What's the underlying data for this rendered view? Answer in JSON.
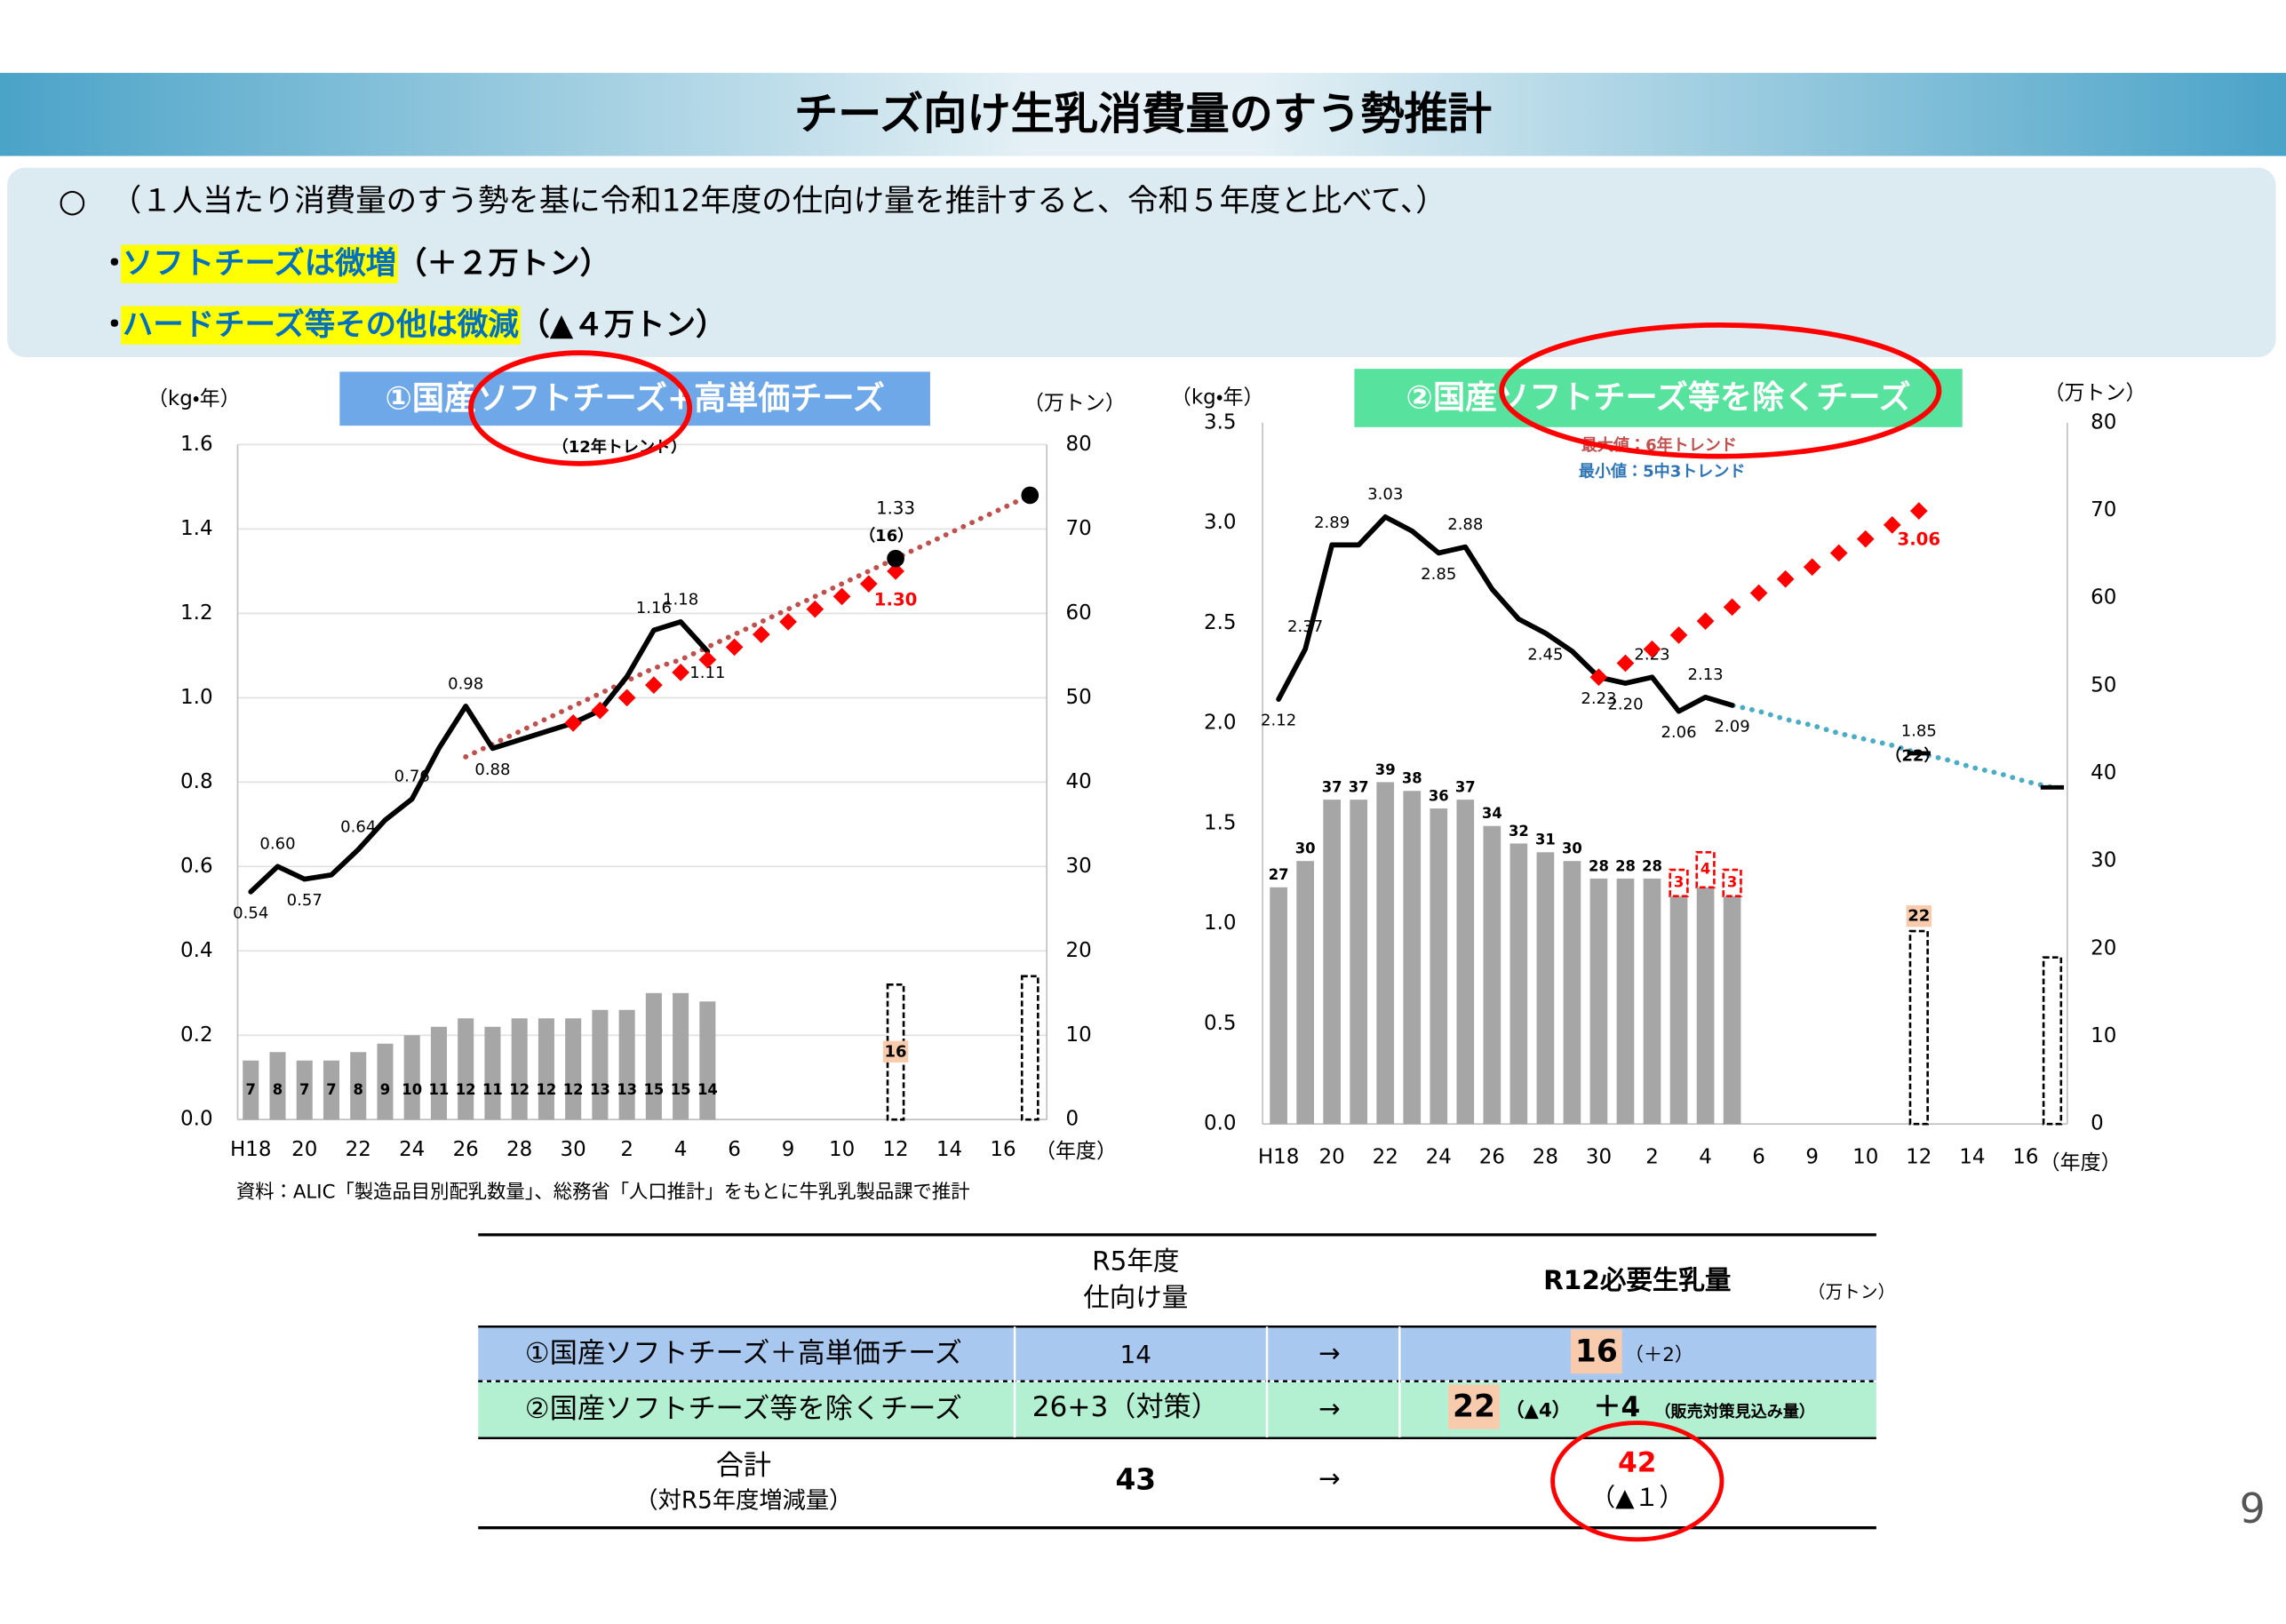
{
  "header": {
    "title": "チーズ向け生乳消費量のすう勢推計"
  },
  "intro": {
    "marker": "○",
    "text": "（１人当たり消費量のすう勢を基に令和12年度の仕向け量を推計すると、令和５年度と比べて、）"
  },
  "bullets": [
    {
      "marker": "・",
      "emphasis": "ソフトチーズは微増",
      "detail": "（＋２万トン）"
    },
    {
      "marker": "・",
      "emphasis": "ハードチーズ等その他は微減",
      "detail": "（▲４万トン）"
    }
  ],
  "chart_data": [
    {
      "type": "bar-line",
      "title": "①国産ソフトチーズ+高単価チーズ",
      "ylabel": "（kg・年）",
      "y2label": "（万トン）",
      "xlabel": "（年度）",
      "categories": [
        "H18",
        null,
        "20",
        null,
        "22",
        null,
        "24",
        null,
        "26",
        null,
        "28",
        null,
        "30",
        null,
        "2",
        null,
        "4",
        null,
        "6",
        null,
        "9",
        null,
        "10",
        null,
        "12",
        null,
        "14",
        null,
        "16",
        null
      ],
      "ylim": [
        0,
        1.6
      ],
      "yticks": [
        {
          "value": 0,
          "label": "0.0"
        },
        0.2,
        0.4,
        0.6,
        0.8,
        {
          "value": 1,
          "label": "1.0"
        },
        1.2,
        1.4,
        1.6
      ],
      "y2lim": [
        0,
        80
      ],
      "y2ticks": [
        0,
        10,
        20,
        30,
        40,
        50,
        60,
        70,
        80
      ],
      "grid": true,
      "annotations": [
        {
          "text": "（12年トレンド）",
          "color": "#000000"
        },
        {
          "text": "（16）",
          "color": "#000000"
        }
      ],
      "series": [
        {
          "style": "bar",
          "axis": "y2",
          "color": "#a6a6a6",
          "labels": true,
          "values": [
            7,
            8,
            7,
            7,
            8,
            9,
            10,
            11,
            12,
            11,
            12,
            12,
            12,
            13,
            13,
            15,
            15,
            14,
            null,
            null,
            null,
            null,
            null,
            null,
            null,
            null,
            null,
            null,
            null,
            null
          ]
        },
        {
          "style": "bar-dashed",
          "axis": "y2",
          "color": "#000000",
          "values": [
            null,
            null,
            null,
            null,
            null,
            null,
            null,
            null,
            null,
            null,
            null,
            null,
            null,
            null,
            null,
            null,
            null,
            null,
            null,
            null,
            null,
            null,
            null,
            null,
            16,
            null,
            null,
            null,
            null,
            17
          ],
          "value_labels": [
            null,
            null,
            null,
            null,
            null,
            null,
            null,
            null,
            null,
            null,
            null,
            null,
            null,
            null,
            null,
            null,
            null,
            null,
            null,
            null,
            null,
            null,
            null,
            null,
            "16",
            null,
            null,
            null,
            null,
            null
          ]
        },
        {
          "style": "dotted",
          "color": "#c0504d",
          "values": [
            null,
            null,
            null,
            null,
            null,
            null,
            null,
            null,
            0.86,
            0.89,
            0.92,
            0.95,
            0.98,
            1.01,
            1.04,
            1.07,
            1.09,
            1.12,
            1.15,
            1.18,
            1.21,
            1.24,
            1.27,
            1.3,
            1.33,
            1.36,
            1.39,
            1.42,
            1.45,
            1.48
          ]
        },
        {
          "style": "line",
          "color": "#000000",
          "values": [
            0.54,
            0.6,
            0.57,
            0.58,
            0.64,
            0.71,
            0.76,
            0.88,
            0.98,
            0.88,
            0.9,
            0.92,
            0.94,
            0.97,
            1.05,
            1.16,
            1.18,
            1.11,
            null,
            null,
            null,
            null,
            null,
            null,
            null,
            null,
            null,
            null,
            null,
            null
          ],
          "value_labels": [
            "0.54",
            "0.60",
            "0.57",
            null,
            "0.64",
            null,
            "0.76",
            null,
            "0.98",
            "0.88",
            null,
            null,
            null,
            null,
            null,
            "1.16",
            "1.18",
            "1.11",
            null,
            null,
            null,
            null,
            null,
            null,
            null,
            null,
            null,
            null,
            null,
            null
          ]
        },
        {
          "style": "diamond",
          "color": "#ff0000",
          "values": [
            null,
            null,
            null,
            null,
            null,
            null,
            null,
            null,
            null,
            null,
            null,
            null,
            0.94,
            0.97,
            1.0,
            1.03,
            1.06,
            1.09,
            1.12,
            1.15,
            1.18,
            1.21,
            1.24,
            1.27,
            1.3,
            null,
            null,
            null,
            null,
            null
          ],
          "value_labels": [
            null,
            null,
            null,
            null,
            null,
            null,
            null,
            null,
            null,
            null,
            null,
            null,
            null,
            null,
            null,
            null,
            null,
            null,
            null,
            null,
            null,
            null,
            null,
            null,
            "1.30",
            null,
            null,
            null,
            null,
            null
          ]
        },
        {
          "style": "circle",
          "color": "#000000",
          "values": [
            null,
            null,
            null,
            null,
            null,
            null,
            null,
            null,
            null,
            null,
            null,
            null,
            null,
            null,
            null,
            null,
            null,
            null,
            null,
            null,
            null,
            null,
            null,
            null,
            1.33,
            null,
            null,
            null,
            null,
            1.48
          ],
          "value_labels": [
            null,
            null,
            null,
            null,
            null,
            null,
            null,
            null,
            null,
            null,
            null,
            null,
            null,
            null,
            null,
            null,
            null,
            null,
            null,
            null,
            null,
            null,
            null,
            null,
            "1.33",
            null,
            null,
            null,
            null,
            null
          ]
        }
      ]
    },
    {
      "type": "bar-line",
      "title": "②国産ソフトチーズ等を除くチーズ",
      "ylabel": "（kg・年）",
      "y2label": "（万トン）",
      "xlabel": "（年度）",
      "categories": [
        "H18",
        null,
        "20",
        null,
        "22",
        null,
        "24",
        null,
        "26",
        null,
        "28",
        null,
        "30",
        null,
        "2",
        null,
        "4",
        null,
        "6",
        null,
        "9",
        null,
        "10",
        null,
        "12",
        null,
        "14",
        null,
        "16",
        null
      ],
      "ylim": [
        0,
        3.5
      ],
      "yticks": [
        {
          "value": 0,
          "label": "0.0"
        },
        0.5,
        {
          "value": 1,
          "label": "1.0"
        },
        1.5,
        {
          "value": 2,
          "label": "2.0"
        },
        2.5,
        {
          "value": 3,
          "label": "3.0"
        },
        3.5
      ],
      "y2lim": [
        0,
        80
      ],
      "y2ticks": [
        0,
        10,
        20,
        30,
        40,
        50,
        60,
        70,
        80
      ],
      "grid": false,
      "annotations": [
        {
          "text": "最大値：6年トレンド",
          "color": "#c0504d"
        },
        {
          "text": "最小値：5中3トレンド",
          "color": "#2e75b6"
        },
        {
          "text": "（22）",
          "color": "#000000"
        }
      ],
      "series": [
        {
          "style": "bar",
          "axis": "y2",
          "color": "#a6a6a6",
          "labels": true,
          "values": [
            27,
            30,
            37,
            37,
            39,
            38,
            36,
            37,
            34,
            32,
            31,
            30,
            28,
            28,
            28,
            26,
            27,
            26,
            null,
            null,
            null,
            null,
            null,
            null,
            null,
            null,
            null,
            null,
            null,
            null
          ]
        },
        {
          "style": "bar-dashed",
          "axis": "y2",
          "color": "#ff0000",
          "stack": true,
          "labels": true,
          "values": [
            null,
            null,
            null,
            null,
            null,
            null,
            null,
            null,
            null,
            null,
            null,
            null,
            null,
            null,
            null,
            3,
            4,
            3,
            null,
            null,
            null,
            null,
            null,
            null,
            null,
            null,
            null,
            null,
            null,
            null
          ]
        },
        {
          "style": "bar-dashed",
          "axis": "y2",
          "color": "#000000",
          "values": [
            null,
            null,
            null,
            null,
            null,
            null,
            null,
            null,
            null,
            null,
            null,
            null,
            null,
            null,
            null,
            null,
            null,
            null,
            null,
            null,
            null,
            null,
            null,
            null,
            22,
            null,
            null,
            null,
            null,
            19
          ],
          "value_labels": [
            null,
            null,
            null,
            null,
            null,
            null,
            null,
            null,
            null,
            null,
            null,
            null,
            null,
            null,
            null,
            null,
            null,
            null,
            null,
            null,
            null,
            null,
            null,
            null,
            "22",
            null,
            null,
            null,
            null,
            null
          ]
        },
        {
          "style": "dotted",
          "color": "#4bacc6",
          "values": [
            null,
            null,
            null,
            null,
            null,
            null,
            null,
            null,
            null,
            null,
            null,
            null,
            null,
            null,
            null,
            null,
            2.13,
            2.09,
            2.06,
            2.02,
            1.99,
            1.95,
            1.92,
            1.89,
            1.85,
            1.82,
            1.78,
            1.75,
            1.71,
            1.68
          ],
          "value_labels": [
            null,
            null,
            null,
            null,
            null,
            null,
            null,
            null,
            null,
            null,
            null,
            null,
            null,
            null,
            null,
            null,
            null,
            null,
            null,
            null,
            null,
            null,
            null,
            null,
            "1.85",
            null,
            null,
            null,
            null,
            null
          ]
        },
        {
          "style": "line",
          "color": "#000000",
          "values": [
            2.12,
            2.37,
            2.89,
            2.89,
            3.03,
            2.96,
            2.85,
            2.88,
            2.67,
            2.52,
            2.45,
            2.36,
            2.23,
            2.2,
            2.23,
            2.06,
            2.13,
            2.09,
            null,
            null,
            null,
            null,
            null,
            null,
            null,
            null,
            null,
            null,
            null,
            null
          ],
          "value_labels": [
            "2.12",
            "2.37",
            "2.89",
            null,
            "3.03",
            null,
            "2.85",
            "2.88",
            null,
            null,
            "2.45",
            null,
            "2.23",
            "2.20",
            "2.23",
            "2.06",
            "2.13",
            "2.09",
            null,
            null,
            null,
            null,
            null,
            null,
            null,
            null,
            null,
            null,
            null,
            null
          ]
        },
        {
          "style": "diamond",
          "color": "#ff0000",
          "values": [
            null,
            null,
            null,
            null,
            null,
            null,
            null,
            null,
            null,
            null,
            null,
            null,
            2.23,
            2.3,
            2.37,
            2.44,
            2.51,
            2.58,
            2.65,
            2.72,
            2.78,
            2.85,
            2.92,
            2.99,
            3.06,
            null,
            null,
            null,
            null,
            null
          ],
          "value_labels": [
            null,
            null,
            null,
            null,
            null,
            null,
            null,
            null,
            null,
            null,
            null,
            null,
            null,
            null,
            null,
            null,
            null,
            null,
            null,
            null,
            null,
            null,
            null,
            null,
            "3.06",
            null,
            null,
            null,
            null,
            null
          ]
        },
        {
          "style": "dash",
          "color": "#000000",
          "values": [
            null,
            null,
            null,
            null,
            null,
            null,
            null,
            null,
            null,
            null,
            null,
            null,
            null,
            null,
            null,
            null,
            null,
            null,
            null,
            null,
            null,
            null,
            null,
            null,
            1.85,
            null,
            null,
            null,
            null,
            1.68
          ]
        }
      ]
    }
  ],
  "source": "資料：ALIC「製造品目別配乳数量」、総務省「人口推計」をもとに牛乳乳製品課で推計",
  "table": {
    "header": {
      "r5": [
        "R5年度",
        "仕向け量"
      ],
      "r12": "R12必要生乳量",
      "unit": "（万トン）"
    },
    "rows": [
      {
        "label": "①国産ソフトチーズ＋高単価チーズ",
        "r5": 14,
        "arrow": "→",
        "r12": 16,
        "change": "（＋2）"
      },
      {
        "label": "②国産ソフトチーズ等を除くチーズ",
        "r5": "26+3（対策）",
        "arrow": "→",
        "r12": 22,
        "change": "（▲4）",
        "extra": "＋4",
        "note": "（販売対策見込み量）"
      },
      {
        "label": [
          "合計",
          "（対R5年度増減量）"
        ],
        "r5": 43,
        "arrow": "→",
        "r12": 42,
        "change": "（▲１）"
      }
    ]
  },
  "page_number": 9
}
